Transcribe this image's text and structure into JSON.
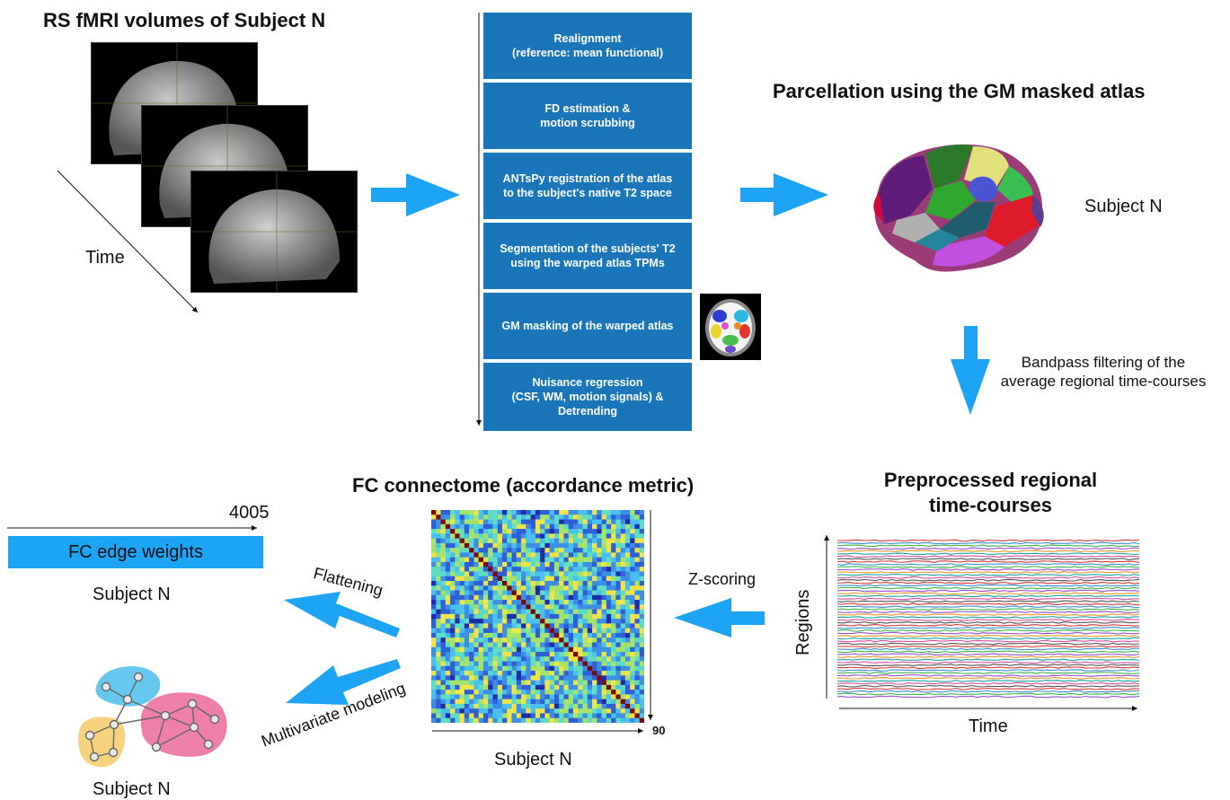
{
  "colors": {
    "step_box": "#1a76b9",
    "arrow": "#1ea4f4",
    "edge_bar": "#1ea4f4"
  },
  "fmri": {
    "title": "RS fMRI volumes of Subject N",
    "time_label": "Time"
  },
  "pipeline": {
    "steps": [
      {
        "text": "Realignment\n(reference: mean functional)"
      },
      {
        "text": "FD estimation &\nmotion scrubbing"
      },
      {
        "text": "ANTsPy registration of the atlas\nto the subject's native T2 space"
      },
      {
        "text": "Segmentation of the subjects' T2\nusing the warped atlas TPMs"
      },
      {
        "text": "GM masking of the warped atlas"
      },
      {
        "text": "Nuisance regression\n(CSF, WM, motion signals)  &\nDetrending"
      }
    ]
  },
  "parcellation": {
    "title": "Parcellation using the GM masked atlas",
    "subject_label": "Subject N"
  },
  "bandpass": {
    "text": "Bandpass filtering of the\naverage regional time-courses"
  },
  "timecourses": {
    "title": "Preprocessed regional\ntime-courses",
    "y_label": "Regions",
    "x_label": "Time"
  },
  "zscoring": {
    "label": "Z-scoring"
  },
  "connectome": {
    "title": "FC connectome (accordance metric)",
    "axis_max": "90",
    "subject_label": "Subject N"
  },
  "edges": {
    "count": "4005",
    "bar_label": "FC edge weights",
    "subject_label": "Subject N"
  },
  "flattening": {
    "label": "Flattening"
  },
  "multivariate": {
    "label": "Multivariate modeling",
    "subject_label": "Subject N"
  }
}
